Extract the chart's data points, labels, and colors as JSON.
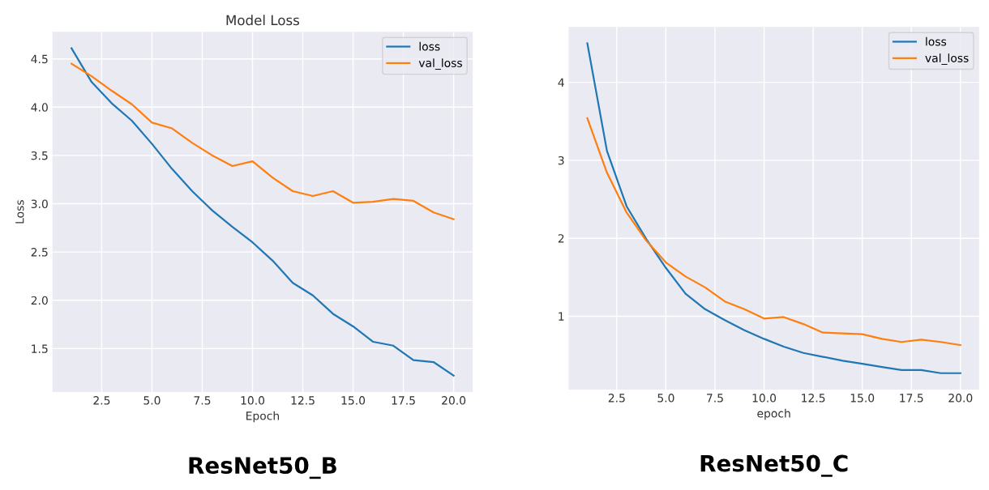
{
  "chart_data": [
    {
      "type": "line",
      "title": "Model Loss",
      "xlabel": "Epoch",
      "ylabel": "Loss",
      "annotations": [
        "ResNet50_B"
      ],
      "x": [
        1,
        2,
        3,
        4,
        5,
        6,
        7,
        8,
        9,
        10,
        11,
        12,
        13,
        14,
        15,
        16,
        17,
        18,
        19,
        20
      ],
      "series": [
        {
          "name": "loss",
          "color": "#1f77b4",
          "values": [
            4.61,
            4.26,
            4.04,
            3.86,
            3.62,
            3.36,
            3.13,
            2.93,
            2.76,
            2.6,
            2.41,
            2.18,
            2.05,
            1.86,
            1.73,
            1.57,
            1.53,
            1.38,
            1.36,
            1.22
          ]
        },
        {
          "name": "val_loss",
          "color": "#ff7f0e",
          "values": [
            4.45,
            4.32,
            4.17,
            4.03,
            3.84,
            3.78,
            3.63,
            3.5,
            3.39,
            3.44,
            3.27,
            3.13,
            3.08,
            3.13,
            3.01,
            3.02,
            3.05,
            3.03,
            2.91,
            2.84
          ]
        }
      ],
      "xlim": [
        0.05,
        20.95
      ],
      "xticks": [
        {
          "value": 2.5,
          "label": "2.5"
        },
        {
          "value": 5,
          "label": "5.0"
        },
        {
          "value": 7.5,
          "label": "7.5"
        },
        {
          "value": 10,
          "label": "10.0"
        },
        {
          "value": 12.5,
          "label": "12.5"
        },
        {
          "value": 15,
          "label": "15.0"
        },
        {
          "value": 17.5,
          "label": "17.5"
        },
        {
          "value": 20,
          "label": "20.0"
        }
      ],
      "ylim": [
        1.05,
        4.78
      ],
      "yticks": [
        1.5,
        {
          "value": 2,
          "label": "2.0"
        },
        2.5,
        {
          "value": 3,
          "label": "3.0"
        },
        3.5,
        {
          "value": 4,
          "label": "4.0"
        },
        4.5
      ],
      "grid": true,
      "legend": "top right",
      "line_style": "solid"
    },
    {
      "type": "line",
      "xlabel": "epoch",
      "annotations": [
        "ResNet50_C"
      ],
      "x": [
        1,
        2,
        3,
        4,
        5,
        6,
        7,
        8,
        9,
        10,
        11,
        12,
        13,
        14,
        15,
        16,
        17,
        18,
        19,
        20
      ],
      "series": [
        {
          "name": "loss",
          "color": "#1f77b4",
          "values": [
            4.5,
            3.12,
            2.41,
            1.99,
            1.62,
            1.29,
            1.09,
            0.95,
            0.82,
            0.71,
            0.61,
            0.53,
            0.48,
            0.43,
            0.39,
            0.35,
            0.31,
            0.31,
            0.27,
            0.27
          ]
        },
        {
          "name": "val_loss",
          "color": "#ff7f0e",
          "values": [
            3.54,
            2.84,
            2.33,
            1.97,
            1.69,
            1.51,
            1.37,
            1.19,
            1.09,
            0.97,
            0.99,
            0.9,
            0.79,
            0.78,
            0.77,
            0.71,
            0.67,
            0.7,
            0.67,
            0.63
          ]
        }
      ],
      "xlim": [
        0.05,
        20.95
      ],
      "xticks": [
        {
          "value": 2.5,
          "label": "2.5"
        },
        {
          "value": 5,
          "label": "5.0"
        },
        {
          "value": 7.5,
          "label": "7.5"
        },
        {
          "value": 10,
          "label": "10.0"
        },
        {
          "value": 12.5,
          "label": "12.5"
        },
        {
          "value": 15,
          "label": "15.0"
        },
        {
          "value": 17.5,
          "label": "17.5"
        },
        {
          "value": 20,
          "label": "20.0"
        }
      ],
      "ylim": [
        0.06,
        4.71
      ],
      "yticks": [
        1,
        2,
        3,
        4
      ],
      "grid": true,
      "legend": "top right",
      "line_style": "solid"
    }
  ]
}
